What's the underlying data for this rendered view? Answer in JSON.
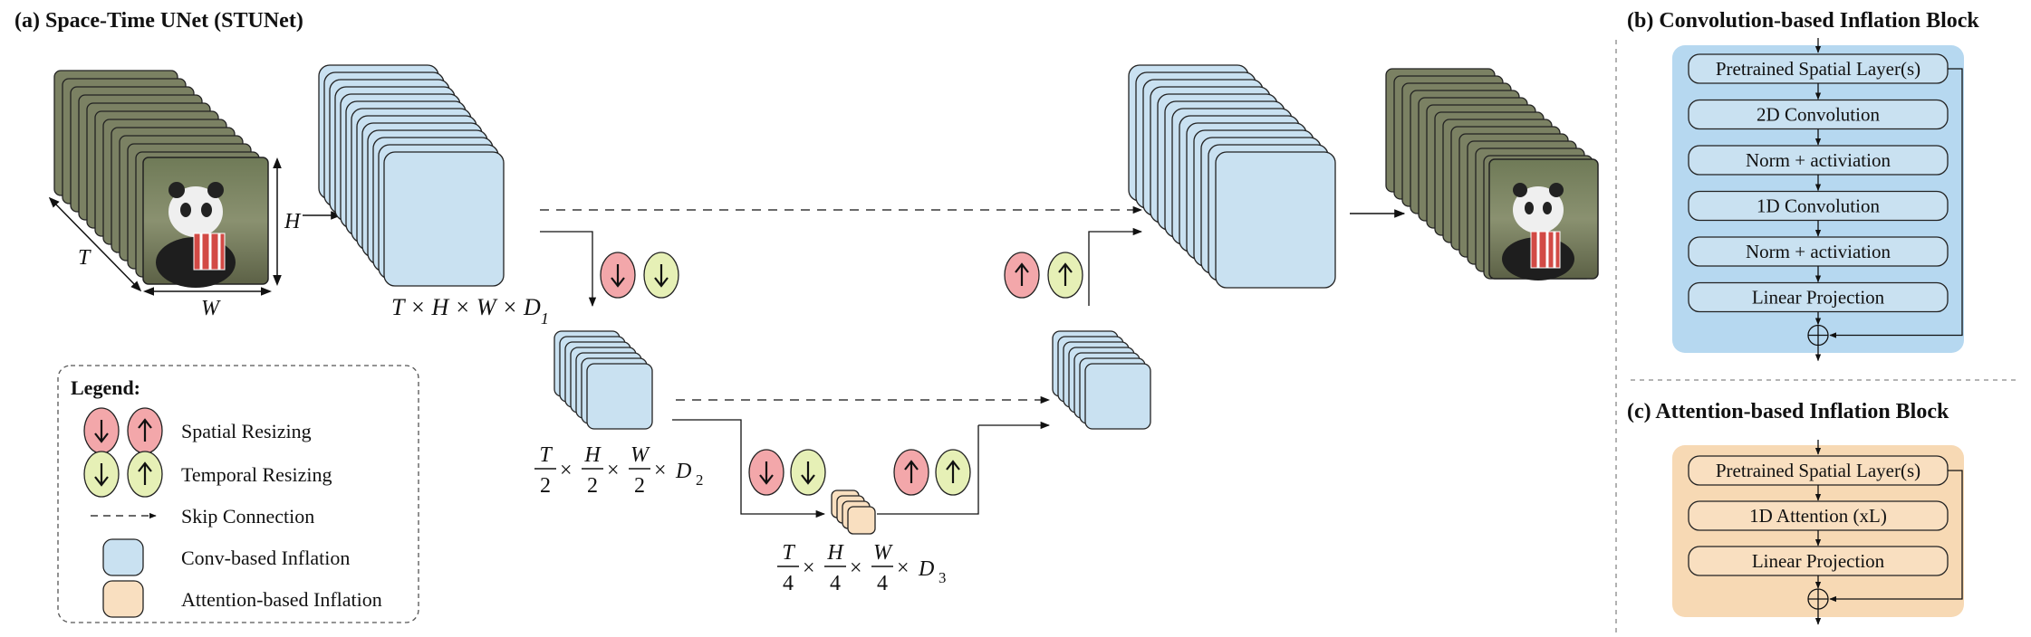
{
  "panel_a": {
    "title": "(a) Space-Time UNet (STUNet)",
    "input_dims": {
      "T": "T",
      "H": "H",
      "W": "W"
    },
    "level1_label": "T × H × W × D",
    "level1_sub": "1",
    "level2_label": {
      "T": "T",
      "H": "H",
      "W": "W",
      "den": "2",
      "D": "D",
      "sub": "2"
    },
    "level3_label": {
      "T": "T",
      "H": "H",
      "W": "W",
      "den": "4",
      "D": "D",
      "sub": "3"
    }
  },
  "legend": {
    "title": "Legend:",
    "items": [
      {
        "label": "Spatial Resizing"
      },
      {
        "label": "Temporal Resizing"
      },
      {
        "label": "Skip Connection"
      },
      {
        "label": "Conv-based Inflation"
      },
      {
        "label": "Attention-based Inflation"
      }
    ]
  },
  "panel_b": {
    "title": "(b) Convolution-based Inflation Block",
    "layers": [
      "Pretrained Spatial Layer(s)",
      "2D Convolution",
      "Norm + activiation",
      "1D Convolution",
      "Norm + activiation",
      "Linear Projection"
    ],
    "add_symbol": "⊕"
  },
  "panel_c": {
    "title": "(c) Attention-based Inflation Block",
    "layers": [
      "Pretrained Spatial Layer(s)",
      "1D Attention (xL)",
      "Linear Projection"
    ],
    "add_symbol": "⊕"
  },
  "colors": {
    "spatial": "#f3a7aa",
    "temporal": "#e6f0b6",
    "conv": "#c9e1f1",
    "attention": "#f9dfc0",
    "conv_panel": "#b6d8f0",
    "attn_panel": "#f7d9b4"
  }
}
